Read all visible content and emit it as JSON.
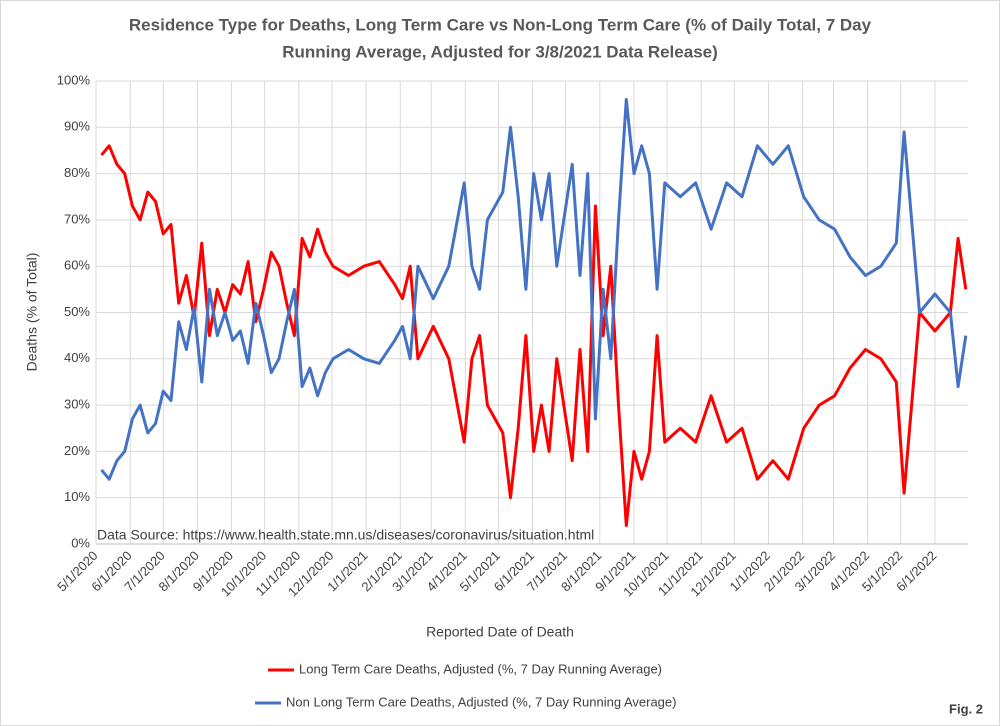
{
  "chart_data": {
    "type": "line",
    "title": [
      "Residence Type for Deaths, Long Term Care vs Non-Long Term Care (% of Daily Total, 7 Day",
      "Running Average, Adjusted for 3/8/2021 Data Release)"
    ],
    "x_label": "Reported Date of Death",
    "y_label": "Deaths (% of Total)",
    "annotation": "Data Source: https://www.health.state.mn.us/diseases/coronavirus/situation.html",
    "figure_label": "Fig. 2",
    "x": [
      "5/6/2020",
      "5/13/2020",
      "5/20/2020",
      "5/27/2020",
      "6/3/2020",
      "6/10/2020",
      "6/17/2020",
      "6/24/2020",
      "7/1/2020",
      "7/8/2020",
      "7/15/2020",
      "7/22/2020",
      "7/29/2020",
      "8/5/2020",
      "8/12/2020",
      "8/19/2020",
      "8/26/2020",
      "9/2/2020",
      "9/9/2020",
      "9/16/2020",
      "9/23/2020",
      "9/30/2020",
      "10/7/2020",
      "10/14/2020",
      "10/21/2020",
      "10/28/2020",
      "11/4/2020",
      "11/11/2020",
      "11/18/2020",
      "11/25/2020",
      "12/2/2020",
      "12/16/2020",
      "12/30/2020",
      "1/13/2021",
      "1/27/2021",
      "2/3/2021",
      "2/10/2021",
      "2/17/2021",
      "3/3/2021",
      "3/17/2021",
      "3/31/2021",
      "4/7/2021",
      "4/14/2021",
      "4/21/2021",
      "5/5/2021",
      "5/12/2021",
      "5/19/2021",
      "5/26/2021",
      "6/2/2021",
      "6/9/2021",
      "6/16/2021",
      "6/23/2021",
      "7/7/2021",
      "7/14/2021",
      "7/21/2021",
      "7/28/2021",
      "8/4/2021",
      "8/11/2021",
      "8/18/2021",
      "8/25/2021",
      "9/1/2021",
      "9/8/2021",
      "9/15/2021",
      "9/22/2021",
      "9/29/2021",
      "10/13/2021",
      "10/27/2021",
      "11/10/2021",
      "11/24/2021",
      "12/8/2021",
      "12/22/2021",
      "1/5/2022",
      "1/19/2022",
      "2/2/2022",
      "2/16/2022",
      "3/2/2022",
      "3/16/2022",
      "3/30/2022",
      "4/13/2022",
      "4/27/2022",
      "5/4/2022",
      "5/18/2022",
      "6/1/2022",
      "6/8/2022",
      "6/15/2022",
      "6/22/2022",
      "6/29/2022"
    ],
    "series": [
      {
        "name": "Long Term Care Deaths, Adjusted (%, 7 Day Running Average)",
        "color": "#ff0000",
        "values": [
          84,
          86,
          82,
          80,
          73,
          70,
          76,
          74,
          67,
          69,
          52,
          58,
          49,
          65,
          45,
          55,
          50,
          56,
          54,
          61,
          48,
          55,
          63,
          60,
          52,
          45,
          66,
          62,
          68,
          63,
          60,
          58,
          60,
          61,
          56,
          53,
          60,
          40,
          47,
          40,
          22,
          40,
          45,
          30,
          24,
          10,
          25,
          45,
          20,
          30,
          20,
          40,
          18,
          42,
          20,
          73,
          45,
          60,
          30,
          4,
          20,
          14,
          20,
          45,
          22,
          25,
          22,
          32,
          22,
          25,
          14,
          18,
          14,
          25,
          30,
          32,
          38,
          42,
          40,
          35,
          11,
          50,
          46,
          48,
          50,
          66,
          55
        ]
      },
      {
        "name": "Non Long Term Care Deaths, Adjusted (%, 7 Day Running Average)",
        "color": "#4472c4",
        "values": [
          16,
          14,
          18,
          20,
          27,
          30,
          24,
          26,
          33,
          31,
          48,
          42,
          51,
          35,
          55,
          45,
          50,
          44,
          46,
          39,
          52,
          45,
          37,
          40,
          48,
          55,
          34,
          38,
          32,
          37,
          40,
          42,
          40,
          39,
          44,
          47,
          40,
          60,
          53,
          60,
          78,
          60,
          55,
          70,
          76,
          90,
          75,
          55,
          80,
          70,
          80,
          60,
          82,
          58,
          80,
          27,
          55,
          40,
          70,
          96,
          80,
          86,
          80,
          55,
          78,
          75,
          78,
          68,
          78,
          75,
          86,
          82,
          86,
          75,
          70,
          68,
          62,
          58,
          60,
          65,
          89,
          50,
          54,
          52,
          50,
          34,
          45
        ]
      }
    ],
    "xlim": [
      "5/1/2020",
      "7/1/2022"
    ],
    "xticks": [
      "5/1/2020",
      "6/1/2020",
      "7/1/2020",
      "8/1/2020",
      "9/1/2020",
      "10/1/2020",
      "11/1/2020",
      "12/1/2020",
      "1/1/2021",
      "2/1/2021",
      "3/1/2021",
      "4/1/2021",
      "5/1/2021",
      "6/1/2021",
      "7/1/2021",
      "8/1/2021",
      "9/1/2021",
      "10/1/2021",
      "11/1/2021",
      "12/1/2021",
      "1/1/2022",
      "2/1/2022",
      "3/1/2022",
      "4/1/2022",
      "5/1/2022",
      "6/1/2022"
    ],
    "ylim": [
      0,
      100
    ],
    "yticks": [
      {
        "value": 0,
        "label": "0%"
      },
      {
        "value": 10,
        "label": "10%"
      },
      {
        "value": 20,
        "label": "20%"
      },
      {
        "value": 30,
        "label": "30%"
      },
      {
        "value": 40,
        "label": "40%"
      },
      {
        "value": 50,
        "label": "50%"
      },
      {
        "value": 60,
        "label": "60%"
      },
      {
        "value": 70,
        "label": "70%"
      },
      {
        "value": 80,
        "label": "80%"
      },
      {
        "value": 90,
        "label": "90%"
      },
      {
        "value": 100,
        "label": "100%"
      }
    ],
    "grid": true,
    "legend": "bottom"
  }
}
